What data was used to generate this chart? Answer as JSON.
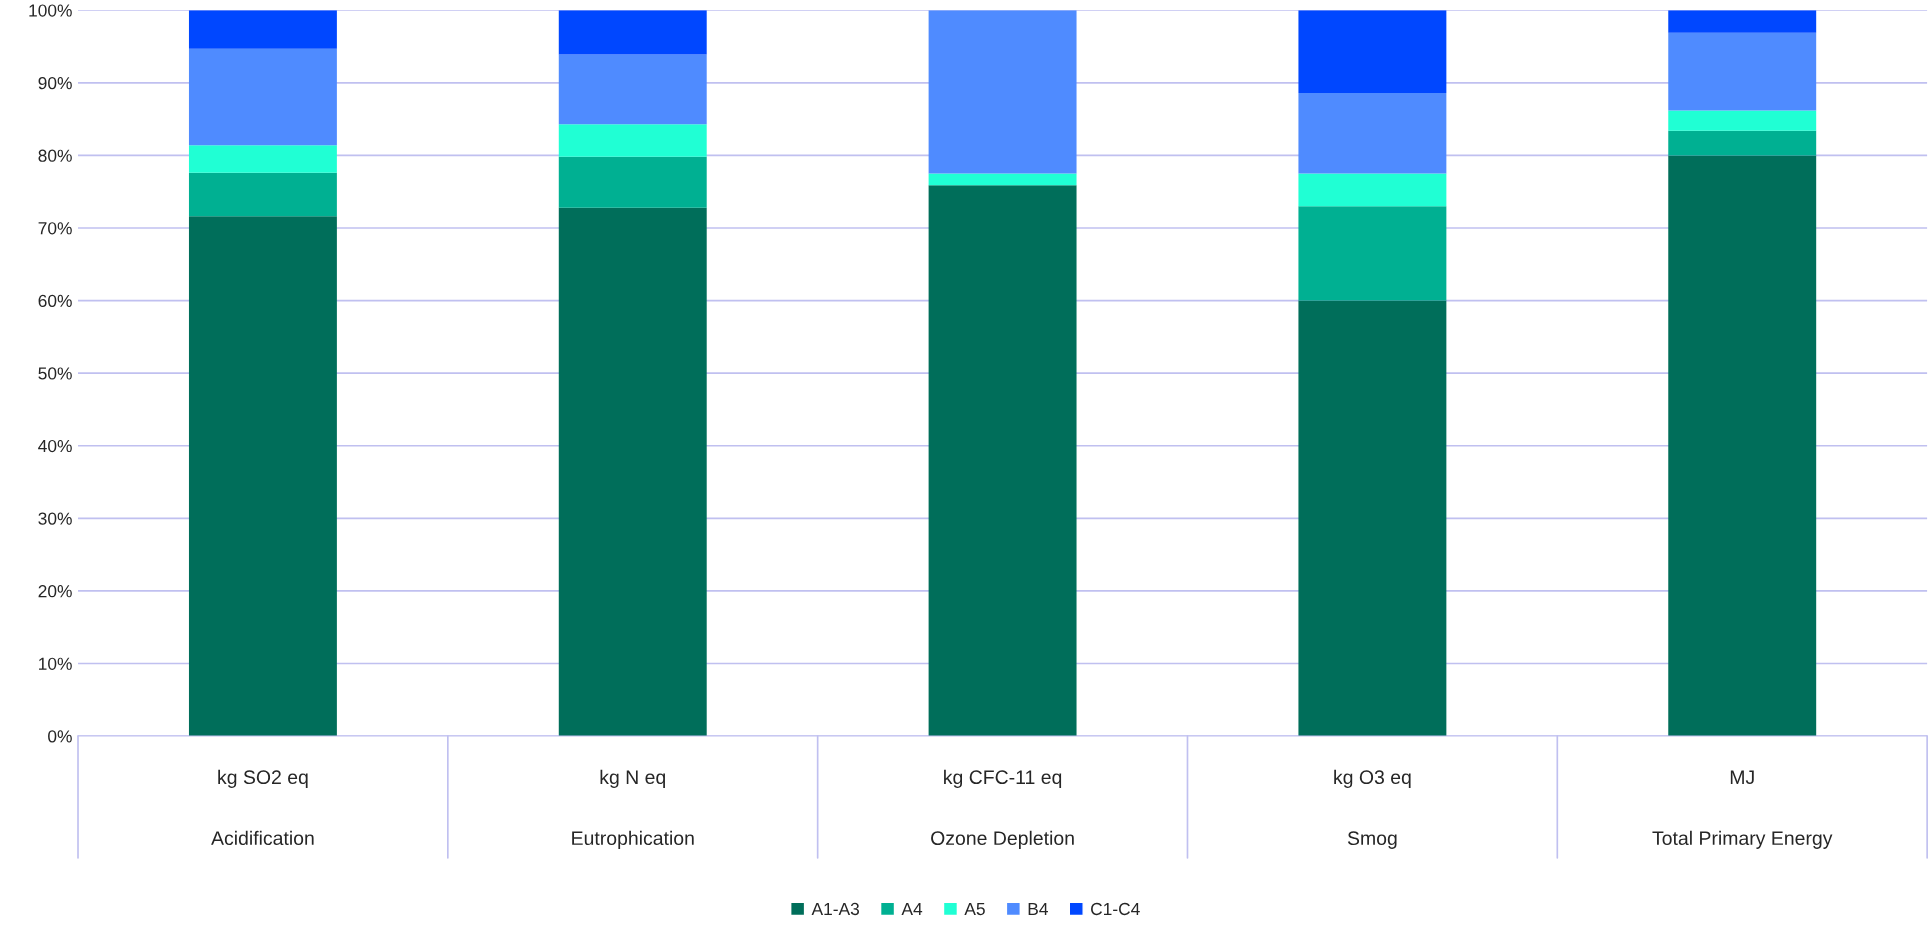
{
  "chart_data": {
    "type": "bar",
    "stacked": true,
    "categories": [
      "kg SO2 eq\nAcidification",
      "kg N eq\nEutrophication",
      "kg CFC-11 eq\nOzone Depletion",
      "kg O3 eq\nSmog",
      "MJ\nTotal Primary Energy"
    ],
    "series": [
      {
        "name": "A1-A3",
        "color": "#006e5a",
        "values": [
          71.6,
          72.8,
          75.9,
          60.0,
          80.0
        ]
      },
      {
        "name": "A4",
        "color": "#00b092",
        "values": [
          6.0,
          7.0,
          0,
          13.0,
          3.4
        ]
      },
      {
        "name": "A5",
        "color": "#20ffd4",
        "values": [
          3.8,
          4.5,
          1.6,
          4.5,
          2.8
        ]
      },
      {
        "name": "B4",
        "color": "#4f8bff",
        "values": [
          13.3,
          9.6,
          22.5,
          11.1,
          10.7
        ]
      },
      {
        "name": "C1-C4",
        "color": "#0047ff",
        "values": [
          5.3,
          6.1,
          0,
          11.4,
          3.1
        ]
      }
    ],
    "ylim": [
      0,
      100
    ],
    "yticks": [
      {
        "value": 0,
        "label": "0%"
      },
      {
        "value": 10,
        "label": "10%"
      },
      {
        "value": 20,
        "label": "20%"
      },
      {
        "value": 30,
        "label": "30%"
      },
      {
        "value": 40,
        "label": "40%"
      },
      {
        "value": 50,
        "label": "50%"
      },
      {
        "value": 60,
        "label": "60%"
      },
      {
        "value": 70,
        "label": "70%"
      },
      {
        "value": 80,
        "label": "80%"
      },
      {
        "value": 90,
        "label": "90%"
      },
      {
        "value": 100,
        "label": "100%"
      }
    ],
    "grid": "y",
    "legend": "bottom"
  }
}
